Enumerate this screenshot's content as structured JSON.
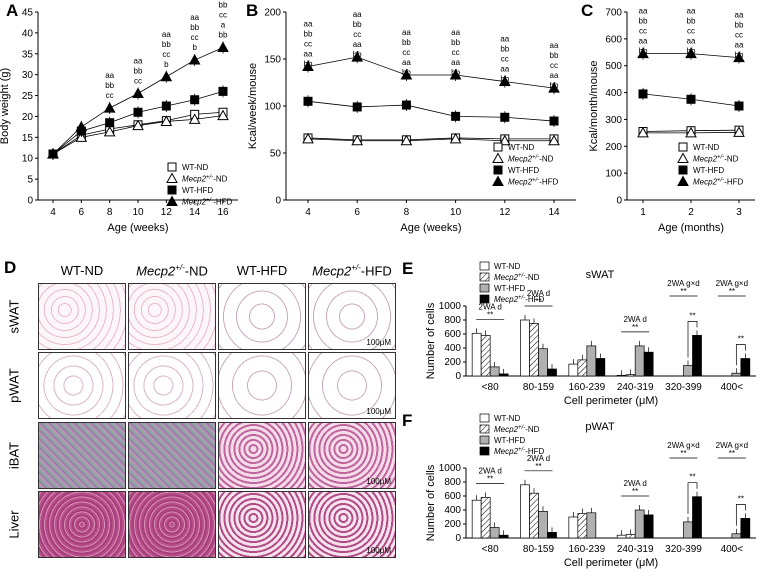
{
  "colors": {
    "black": "#000000",
    "white": "#ffffff",
    "gray": "#b0b0b0",
    "stainPale": "#f4e6ee",
    "stainHE": "#c889b8",
    "stainLiver": "#b0447e"
  },
  "chart_data": [
    {
      "panel": "A",
      "type": "line",
      "ylabel": "Body weight (g)",
      "xlabel": "Age (weeks)",
      "ylim": [
        0,
        45
      ],
      "yticks": [
        0,
        5,
        10,
        15,
        20,
        25,
        30,
        35,
        40,
        45
      ],
      "x": [
        4,
        6,
        8,
        10,
        12,
        14,
        16
      ],
      "series": [
        {
          "name": "WT-ND",
          "marker": "open-square",
          "values": [
            11,
            15.5,
            17,
            18,
            19,
            20.5,
            21
          ]
        },
        {
          "name": "Mecp2+/--ND",
          "marker": "open-triangle",
          "values": [
            11,
            15,
            16.3,
            17.8,
            18.8,
            19.3,
            20.2
          ]
        },
        {
          "name": "WT-HFD",
          "marker": "filled-square",
          "values": [
            11,
            16.5,
            18.5,
            21,
            22.5,
            24,
            26
          ]
        },
        {
          "name": "Mecp2+/--HFD",
          "marker": "filled-triangle",
          "values": [
            11,
            17.5,
            22,
            25.5,
            29.5,
            33.5,
            36.5
          ]
        }
      ],
      "annotations": [
        {
          "x": 8,
          "lines": [
            "aa",
            "bb",
            "cc"
          ]
        },
        {
          "x": 10,
          "lines": [
            "aa",
            "bb",
            "cc"
          ]
        },
        {
          "x": 12,
          "lines": [
            "aa",
            "bb",
            "cc",
            "b"
          ]
        },
        {
          "x": 14,
          "lines": [
            "aa",
            "bb",
            "cc",
            "b"
          ]
        },
        {
          "x": 16,
          "lines": [
            "aa",
            "bb",
            "cc",
            "a",
            "bb"
          ]
        }
      ]
    },
    {
      "panel": "B",
      "type": "line",
      "ylabel": "Kcal/week/mouse",
      "xlabel": "Age (weeks)",
      "ylim": [
        0,
        200
      ],
      "yticks": [
        0,
        50,
        100,
        150,
        200
      ],
      "x": [
        4,
        6,
        8,
        10,
        12,
        14
      ],
      "series": [
        {
          "name": "WT-ND",
          "marker": "open-square",
          "values": [
            66,
            64,
            64,
            66,
            65,
            65
          ]
        },
        {
          "name": "Mecp2+/--ND",
          "marker": "open-triangle",
          "values": [
            65,
            63,
            63,
            65,
            63,
            63
          ]
        },
        {
          "name": "WT-HFD",
          "marker": "filled-square",
          "values": [
            105,
            99,
            101,
            89,
            88,
            84
          ]
        },
        {
          "name": "Mecp2+/--HFD",
          "marker": "filled-triangle",
          "values": [
            142,
            152,
            133,
            133,
            126,
            119
          ]
        }
      ],
      "annotations": [
        {
          "x": 4,
          "lines": [
            "aa",
            "bb",
            "cc",
            "aa",
            "bb"
          ]
        },
        {
          "x": 6,
          "lines": [
            "aa",
            "bb",
            "cc",
            "aa",
            "bb"
          ]
        },
        {
          "x": 8,
          "lines": [
            "aa",
            "bb",
            "cc",
            "aa",
            "bb"
          ]
        },
        {
          "x": 10,
          "lines": [
            "aa",
            "bb",
            "cc",
            "aa",
            "bb"
          ]
        },
        {
          "x": 12,
          "lines": [
            "aa",
            "bb",
            "cc",
            "aa",
            "bb"
          ]
        },
        {
          "x": 14,
          "lines": [
            "aa",
            "bb",
            "cc",
            "aa",
            "bb"
          ]
        }
      ]
    },
    {
      "panel": "C",
      "type": "line",
      "ylabel": "Kcal/month/mouse",
      "xlabel": "Age (months)",
      "ylim": [
        0,
        700
      ],
      "yticks": [
        0,
        100,
        200,
        300,
        400,
        500,
        600,
        700
      ],
      "x": [
        1,
        2,
        3
      ],
      "series": [
        {
          "name": "WT-ND",
          "marker": "open-square",
          "values": [
            255,
            258,
            260
          ]
        },
        {
          "name": "Mecp2+/--ND",
          "marker": "open-triangle",
          "values": [
            250,
            250,
            252
          ]
        },
        {
          "name": "WT-HFD",
          "marker": "filled-square",
          "values": [
            395,
            375,
            350
          ]
        },
        {
          "name": "Mecp2+/--HFD",
          "marker": "filled-triangle",
          "values": [
            545,
            545,
            530
          ]
        }
      ],
      "annotations": [
        {
          "x": 1,
          "lines": [
            "aa",
            "bb",
            "cc",
            "aa",
            "bb"
          ]
        },
        {
          "x": 2,
          "lines": [
            "aa",
            "bb",
            "cc",
            "aa",
            "bb"
          ]
        },
        {
          "x": 3,
          "lines": [
            "aa",
            "bb",
            "cc",
            "aa",
            "bb"
          ]
        }
      ]
    },
    {
      "panel": "E",
      "type": "bar",
      "title": "sWAT",
      "ylabel": "Number of cells",
      "xlabel": "Cell perimeter (μM)",
      "ylim": [
        0,
        1000
      ],
      "yticks": [
        0,
        200,
        400,
        600,
        800,
        1000
      ],
      "categories": [
        "<80",
        "80-159",
        "160-239",
        "240-319",
        "320-399",
        "400<"
      ],
      "series": [
        {
          "name": "WT-ND",
          "fill": "white",
          "values": [
            610,
            800,
            170,
            10,
            0,
            0
          ]
        },
        {
          "name": "Mecp2+/--ND",
          "fill": "hatch",
          "values": [
            580,
            750,
            230,
            20,
            0,
            0
          ]
        },
        {
          "name": "WT-HFD",
          "fill": "gray",
          "values": [
            130,
            390,
            430,
            430,
            150,
            40
          ]
        },
        {
          "name": "Mecp2+/--HFD",
          "fill": "black",
          "values": [
            30,
            100,
            250,
            340,
            580,
            250
          ]
        }
      ]
    },
    {
      "panel": "F",
      "type": "bar",
      "title": "pWAT",
      "ylabel": "Number of cells",
      "xlabel": "Cell perimeter (μM)",
      "ylim": [
        0,
        1000
      ],
      "yticks": [
        0,
        200,
        400,
        600,
        800,
        1000
      ],
      "categories": [
        "<80",
        "80-159",
        "160-239",
        "240-319",
        "320-399",
        "400<"
      ],
      "series": [
        {
          "name": "WT-ND",
          "fill": "white",
          "values": [
            540,
            760,
            300,
            40,
            0,
            0
          ]
        },
        {
          "name": "Mecp2+/--ND",
          "fill": "hatch",
          "values": [
            580,
            640,
            350,
            50,
            0,
            0
          ]
        },
        {
          "name": "WT-HFD",
          "fill": "gray",
          "values": [
            150,
            380,
            360,
            400,
            230,
            60
          ]
        },
        {
          "name": "Mecp2+/--HFD",
          "fill": "black",
          "values": [
            40,
            80,
            0,
            330,
            590,
            280
          ]
        }
      ]
    }
  ],
  "sig": {
    "e_c0": "2WA d",
    "e_c1": "2WA d",
    "e_c3": "2WA d",
    "e_c4": "2WA g×d",
    "e_c5": "2WA g×d",
    "f_c0": "2WA d",
    "f_c1": "2WA d",
    "f_c3": "2WA d",
    "f_c4": "2WA g×d",
    "f_c5": "2WA g×d",
    "stars": "**"
  },
  "legend": {
    "wt_nd": "WT-ND",
    "mecp2_nd_pre": "Mecp2",
    "mecp2_nd_sup": "+/-",
    "mecp2_nd_post": "-ND",
    "wt_hfd": "WT-HFD",
    "mecp2_hfd_pre": "Mecp2",
    "mecp2_hfd_sup": "+/-",
    "mecp2_hfd_post": "-HFD"
  },
  "histology": {
    "columns": [
      "WT-ND",
      "-ND",
      "WT-HFD",
      "-HFD"
    ],
    "col_italic": "Mecp2",
    "col_sup": "+/-",
    "rows": [
      "sWAT",
      "pWAT",
      "iBAT",
      "Liver"
    ],
    "scale": "100μM"
  },
  "letters": {
    "a": "A",
    "b": "B",
    "c": "C",
    "d": "D",
    "e": "E",
    "f": "F"
  }
}
